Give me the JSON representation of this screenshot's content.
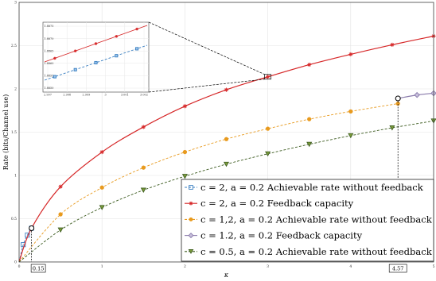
{
  "chart_data": {
    "type": "line",
    "xlabel": "κ",
    "ylabel": "Rate (bits/Channel use)",
    "xlim": [
      0,
      5
    ],
    "ylim": [
      0,
      3
    ],
    "x_ticks": [
      "0",
      "1",
      "2",
      "3",
      "4",
      "5"
    ],
    "y_ticks": [
      "0",
      "0.5",
      "1",
      "1.5",
      "2",
      "2.5",
      "3"
    ],
    "grid": true,
    "legend_position": "bottom-right",
    "series": [
      {
        "name": "c = 2, a = 0.2 Achievable rate without feedback",
        "color": "#3a7fc1",
        "line": "dashed",
        "marker": "square",
        "x": [
          0,
          0.05,
          0.1,
          0.15
        ],
        "y": [
          0,
          0.2,
          0.31,
          0.39
        ]
      },
      {
        "name": "c = 2, a = 0.2 Feedback capacity",
        "color": "#d62728",
        "line": "solid",
        "marker": "star",
        "x": [
          0,
          0.15,
          0.5,
          1,
          1.5,
          2,
          2.5,
          3,
          3.5,
          4,
          4.5,
          5
        ],
        "y": [
          0,
          0.39,
          0.87,
          1.27,
          1.56,
          1.8,
          1.99,
          2.14,
          2.28,
          2.4,
          2.51,
          2.61
        ]
      },
      {
        "name": "c = 1,2, a = 0.2 Achievable rate without feedback",
        "color": "#e89a1e",
        "line": "dashed",
        "marker": "circle",
        "x": [
          0,
          0.5,
          1,
          1.5,
          2,
          2.5,
          3,
          3.5,
          4,
          4.57
        ],
        "y": [
          0,
          0.55,
          0.86,
          1.09,
          1.27,
          1.42,
          1.54,
          1.65,
          1.74,
          1.83
        ]
      },
      {
        "name": "c = 1.2, a = 0.2 Feedback capacity",
        "color": "#8a7bab",
        "line": "solid",
        "marker": "diamond",
        "x": [
          4.57,
          4.8,
          5
        ],
        "y": [
          1.89,
          1.93,
          1.95
        ]
      },
      {
        "name": "c = 0.5, a = 0.2 Achievable rate without feedback",
        "color": "#3b5a1e",
        "line": "dashed",
        "marker": "triangle-down",
        "x": [
          0,
          0.5,
          1,
          1.5,
          2,
          2.5,
          3,
          3.5,
          4,
          4.5,
          5
        ],
        "y": [
          0,
          0.37,
          0.63,
          0.83,
          0.99,
          1.13,
          1.25,
          1.36,
          1.46,
          1.55,
          1.63
        ]
      }
    ],
    "annotations": [
      {
        "text": "0.15",
        "x": 0.15
      },
      {
        "text": "4.57",
        "x": 4.57
      }
    ],
    "inset": {
      "x_ticks": [
        "2.997",
        "2.998",
        "2.999",
        "3",
        "3.001",
        "3.002"
      ],
      "y_ticks": [
        "1.8875",
        "1.8870",
        "1.8865",
        "1.8860",
        "1.8855",
        "1.8850"
      ]
    }
  }
}
